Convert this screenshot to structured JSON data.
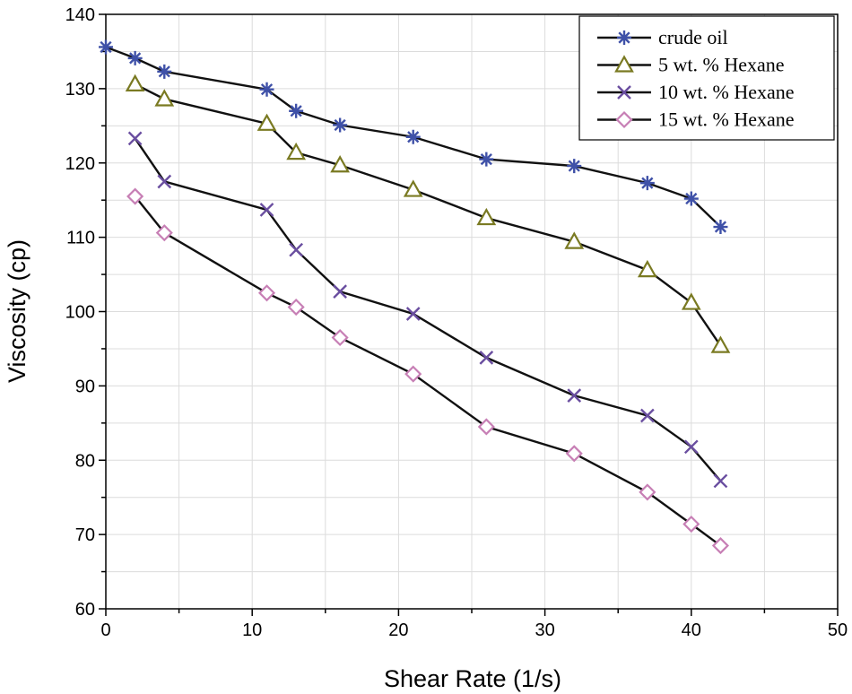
{
  "chart_data": {
    "type": "line",
    "title": "",
    "xlabel": "Shear Rate (1/s)",
    "ylabel": "Viscosity (cp)",
    "xlim": [
      0,
      50
    ],
    "ylim": [
      60,
      140
    ],
    "xticks": [
      0,
      10,
      20,
      30,
      40,
      50
    ],
    "yticks": [
      60,
      70,
      80,
      90,
      100,
      110,
      120,
      130,
      140
    ],
    "grid": true,
    "legend_position": "top-right",
    "series": [
      {
        "name": "crude oil",
        "marker": "asterisk",
        "color": "#3f51a8",
        "x": [
          0,
          2,
          4,
          11,
          13,
          16,
          21,
          26,
          32,
          37,
          40,
          42
        ],
        "y": [
          135.6,
          134.1,
          132.3,
          129.9,
          127.0,
          125.1,
          123.5,
          120.5,
          119.6,
          117.3,
          115.2,
          111.4
        ]
      },
      {
        "name": "5 wt. % Hexane",
        "marker": "triangle",
        "color": "#7a7a22",
        "x": [
          2,
          4,
          11,
          13,
          16,
          21,
          26,
          32,
          37,
          40,
          42
        ],
        "y": [
          130.6,
          128.6,
          125.3,
          121.4,
          119.7,
          116.4,
          112.6,
          109.4,
          105.6,
          101.2,
          95.4
        ]
      },
      {
        "name": "10 wt. % Hexane",
        "marker": "x",
        "color": "#6a4ea0",
        "x": [
          2,
          4,
          11,
          13,
          16,
          21,
          26,
          32,
          37,
          40,
          42
        ],
        "y": [
          123.3,
          117.5,
          113.7,
          108.3,
          102.7,
          99.7,
          93.8,
          88.7,
          86.0,
          81.8,
          77.2
        ]
      },
      {
        "name": "15 wt. % Hexane",
        "marker": "diamond",
        "color": "#c77fb5",
        "x": [
          2,
          4,
          11,
          13,
          16,
          21,
          26,
          32,
          37,
          40,
          42
        ],
        "y": [
          115.5,
          110.6,
          102.5,
          100.6,
          96.5,
          91.6,
          84.5,
          80.9,
          75.7,
          71.4,
          68.5
        ]
      }
    ]
  }
}
